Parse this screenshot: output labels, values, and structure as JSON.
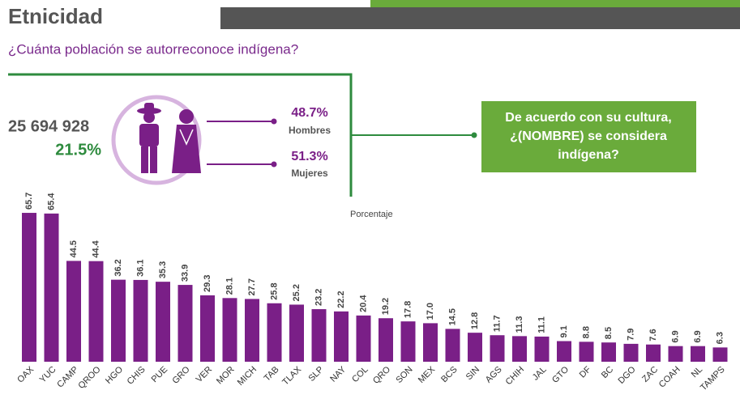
{
  "chart_data": {
    "type": "bar",
    "title": "Etnicidad",
    "subtitle": "¿Cuánta población se autorreconoce indígena?",
    "axis_label": "Porcentaje",
    "summary": {
      "population": "25 694 928",
      "share": "21.5%"
    },
    "groups": [
      {
        "value_label": "48.7%",
        "label": "Hombres"
      },
      {
        "value_label": "51.3%",
        "label": "Mujeres"
      }
    ],
    "question": [
      "De acuerdo con su cultura,",
      "¿(NOMBRE) se considera",
      "indígena?"
    ],
    "color": "#7a1f87",
    "categories": [
      "OAX",
      "YUC",
      "CAMP",
      "QROO",
      "HGO",
      "CHIS",
      "PUE",
      "GRO",
      "VER",
      "MOR",
      "MICH",
      "TAB",
      "TLAX",
      "SLP",
      "NAY",
      "COL",
      "QRO",
      "SON",
      "MEX",
      "BCS",
      "SIN",
      "AGS",
      "CHIH",
      "JAL",
      "GTO",
      "DF",
      "BC",
      "DGO",
      "ZAC",
      "COAH",
      "NL",
      "TAMPS"
    ],
    "values": [
      65.7,
      65.4,
      44.5,
      44.4,
      36.2,
      36.1,
      35.3,
      33.9,
      29.3,
      28.1,
      27.7,
      25.8,
      25.2,
      23.2,
      22.2,
      20.4,
      19.2,
      17.8,
      17.0,
      14.5,
      12.8,
      11.7,
      11.3,
      11.1,
      9.1,
      8.8,
      8.5,
      7.9,
      7.6,
      6.9,
      6.9,
      6.3
    ],
    "value_labels": [
      "65.7",
      "65.4",
      "44.5",
      "44.4",
      "36.2",
      "36.1",
      "35.3",
      "33.9",
      "29.3",
      "28.1",
      "27.7",
      "25.8",
      "25.2",
      "23.2",
      "22.2",
      "20.4",
      "19.2",
      "17.8",
      "17.0",
      "14.5",
      "12.8",
      "11.7",
      "11.3",
      "11.1",
      "9.1",
      "8.8",
      "8.5",
      "7.9",
      "7.6",
      "6.9",
      "6.9",
      "6.3"
    ]
  }
}
